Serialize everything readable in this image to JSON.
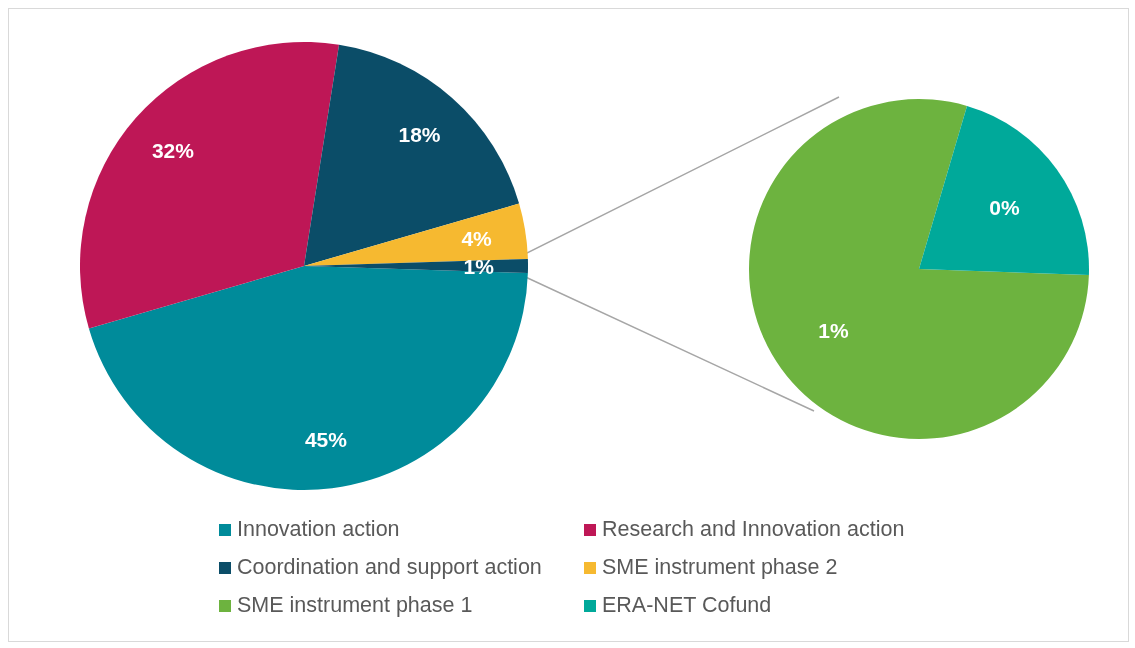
{
  "chart_data": [
    {
      "type": "pie",
      "categories": [
        "Innovation action",
        "Research and Innovation action",
        "Coordination and support action",
        "SME instrument phase 2",
        null
      ],
      "values": [
        45,
        32,
        18,
        4,
        1
      ],
      "colors": [
        "#008b9a",
        "#be1756",
        "#0b4d68",
        "#f6b930",
        "#0b4d68"
      ],
      "value_labels": [
        "45%",
        "32%",
        "18%",
        "4%",
        "1%"
      ],
      "legend": "bottom"
    },
    {
      "type": "pie",
      "categories": [
        "SME instrument phase 1",
        "ERA-NET Cofund"
      ],
      "values": [
        0.79,
        0.21
      ],
      "colors": [
        "#6db33f",
        "#00a99a"
      ],
      "value_labels": [
        "1%",
        "0%"
      ],
      "legend": "bottom"
    }
  ]
}
